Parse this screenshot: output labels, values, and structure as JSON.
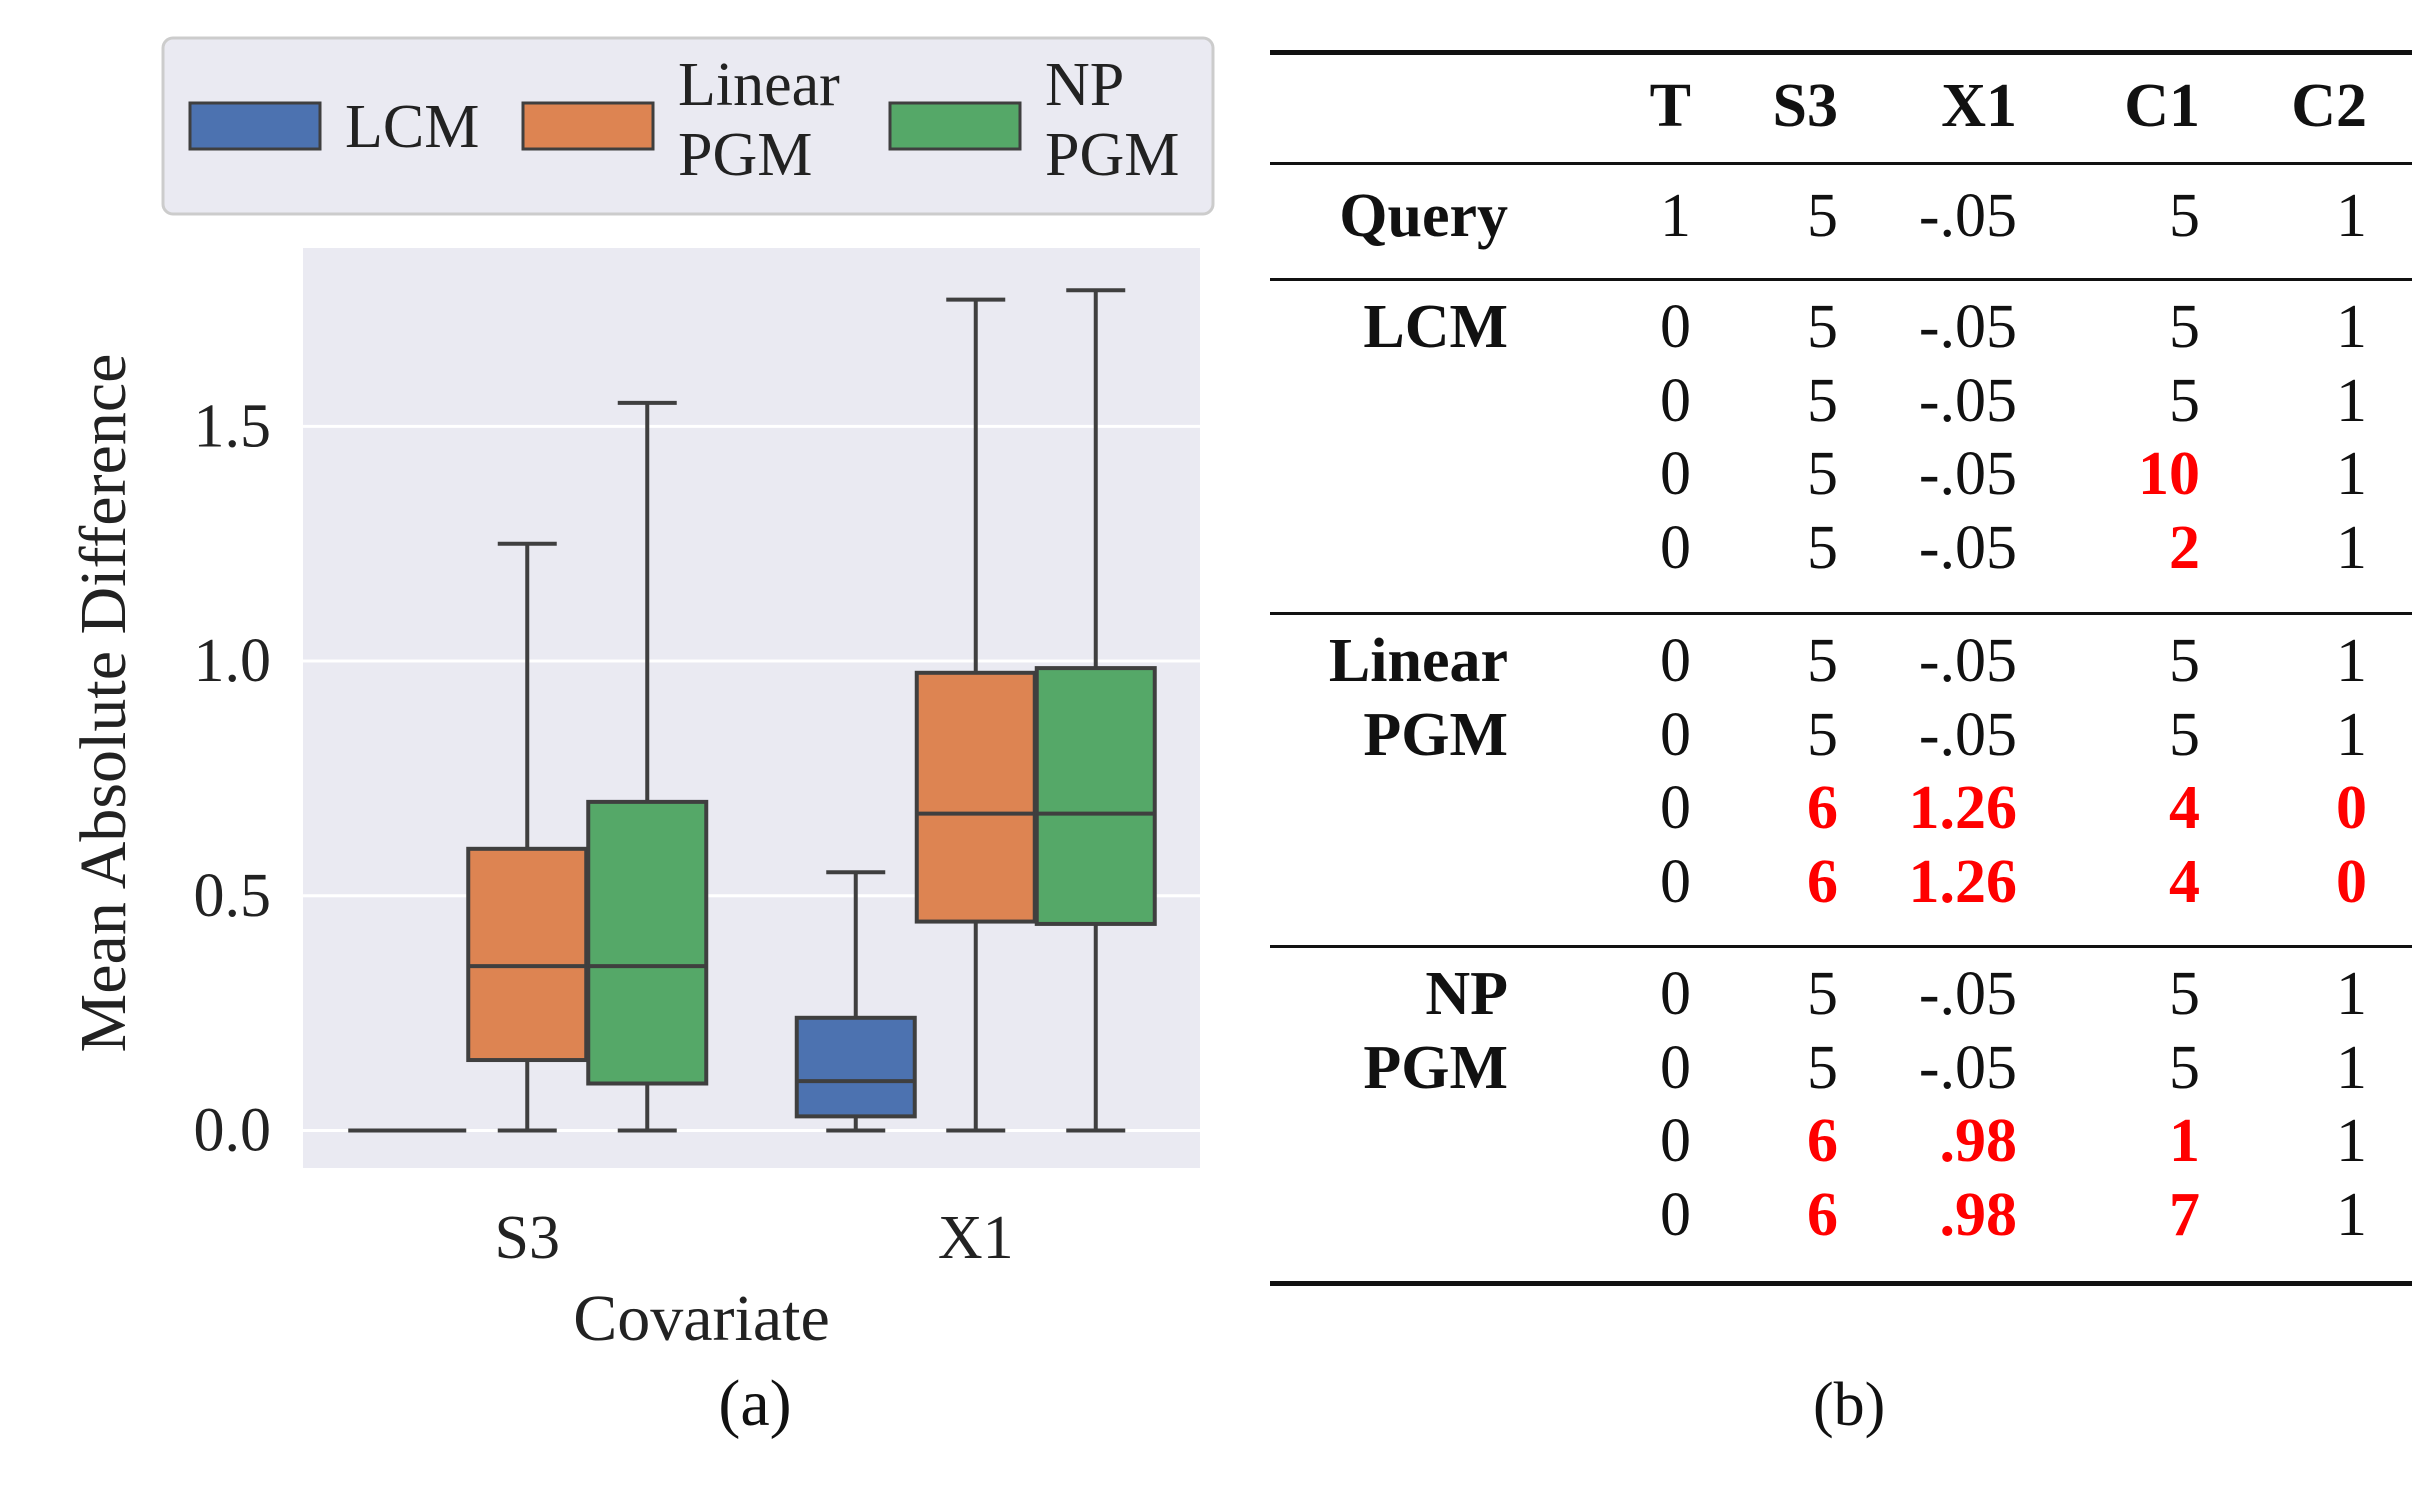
{
  "figure_a": {
    "caption": "(a)",
    "legend": [
      {
        "label_lines": [
          "LCM"
        ],
        "color": "#4c72b0"
      },
      {
        "label_lines": [
          "Linear",
          "PGM"
        ],
        "color": "#dd8452"
      },
      {
        "label_lines": [
          "NP",
          "PGM"
        ],
        "color": "#55a868"
      }
    ]
  },
  "chart_data": {
    "type": "boxplot",
    "xlabel": "Covariate",
    "ylabel": "Mean Absolute Difference",
    "categories": [
      "S3",
      "X1"
    ],
    "ylim": [
      -0.08,
      1.88
    ],
    "yticks": [
      0.0,
      0.5,
      1.0,
      1.5
    ],
    "ytick_labels": [
      "0.0",
      "0.5",
      "1.0",
      "1.5"
    ],
    "grid": true,
    "legend_position": "top",
    "series": [
      {
        "name": "LCM",
        "color": "#4c72b0",
        "boxes": [
          {
            "whislo": 0.0,
            "q1": 0.0,
            "med": 0.0,
            "q3": 0.0,
            "whishi": 0.0
          },
          {
            "whislo": 0.0,
            "q1": 0.03,
            "med": 0.105,
            "q3": 0.24,
            "whishi": 0.55
          }
        ]
      },
      {
        "name": "Linear PGM",
        "color": "#dd8452",
        "boxes": [
          {
            "whislo": 0.0,
            "q1": 0.15,
            "med": 0.35,
            "q3": 0.6,
            "whishi": 1.25
          },
          {
            "whislo": 0.0,
            "q1": 0.445,
            "med": 0.675,
            "q3": 0.975,
            "whishi": 1.77
          }
        ]
      },
      {
        "name": "NP PGM",
        "color": "#55a868",
        "boxes": [
          {
            "whislo": 0.0,
            "q1": 0.1,
            "med": 0.35,
            "q3": 0.7,
            "whishi": 1.55
          },
          {
            "whislo": 0.0,
            "q1": 0.44,
            "med": 0.675,
            "q3": 0.985,
            "whishi": 1.79
          }
        ]
      }
    ]
  },
  "table_b": {
    "caption": "(b)",
    "columns": [
      "T",
      "S3",
      "X1",
      "C1",
      "C2"
    ],
    "groups": [
      {
        "label_lines": [
          "Query"
        ],
        "rows": [
          [
            {
              "v": "1",
              "hl": false
            },
            {
              "v": "5",
              "hl": false
            },
            {
              "v": "-.05",
              "hl": false
            },
            {
              "v": "5",
              "hl": false
            },
            {
              "v": "1",
              "hl": false
            }
          ]
        ]
      },
      {
        "label_lines": [
          "LCM"
        ],
        "rows": [
          [
            {
              "v": "0",
              "hl": false
            },
            {
              "v": "5",
              "hl": false
            },
            {
              "v": "-.05",
              "hl": false
            },
            {
              "v": "5",
              "hl": false
            },
            {
              "v": "1",
              "hl": false
            }
          ],
          [
            {
              "v": "0",
              "hl": false
            },
            {
              "v": "5",
              "hl": false
            },
            {
              "v": "-.05",
              "hl": false
            },
            {
              "v": "5",
              "hl": false
            },
            {
              "v": "1",
              "hl": false
            }
          ],
          [
            {
              "v": "0",
              "hl": false
            },
            {
              "v": "5",
              "hl": false
            },
            {
              "v": "-.05",
              "hl": false
            },
            {
              "v": "10",
              "hl": true
            },
            {
              "v": "1",
              "hl": false
            }
          ],
          [
            {
              "v": "0",
              "hl": false
            },
            {
              "v": "5",
              "hl": false
            },
            {
              "v": "-.05",
              "hl": false
            },
            {
              "v": "2",
              "hl": true
            },
            {
              "v": "1",
              "hl": false
            }
          ]
        ]
      },
      {
        "label_lines": [
          "Linear",
          "PGM"
        ],
        "rows": [
          [
            {
              "v": "0",
              "hl": false
            },
            {
              "v": "5",
              "hl": false
            },
            {
              "v": "-.05",
              "hl": false
            },
            {
              "v": "5",
              "hl": false
            },
            {
              "v": "1",
              "hl": false
            }
          ],
          [
            {
              "v": "0",
              "hl": false
            },
            {
              "v": "5",
              "hl": false
            },
            {
              "v": "-.05",
              "hl": false
            },
            {
              "v": "5",
              "hl": false
            },
            {
              "v": "1",
              "hl": false
            }
          ],
          [
            {
              "v": "0",
              "hl": false
            },
            {
              "v": "6",
              "hl": true
            },
            {
              "v": "1.26",
              "hl": true
            },
            {
              "v": "4",
              "hl": true
            },
            {
              "v": "0",
              "hl": true
            }
          ],
          [
            {
              "v": "0",
              "hl": false
            },
            {
              "v": "6",
              "hl": true
            },
            {
              "v": "1.26",
              "hl": true
            },
            {
              "v": "4",
              "hl": true
            },
            {
              "v": "0",
              "hl": true
            }
          ]
        ]
      },
      {
        "label_lines": [
          "NP",
          "PGM"
        ],
        "rows": [
          [
            {
              "v": "0",
              "hl": false
            },
            {
              "v": "5",
              "hl": false
            },
            {
              "v": "-.05",
              "hl": false
            },
            {
              "v": "5",
              "hl": false
            },
            {
              "v": "1",
              "hl": false
            }
          ],
          [
            {
              "v": "0",
              "hl": false
            },
            {
              "v": "5",
              "hl": false
            },
            {
              "v": "-.05",
              "hl": false
            },
            {
              "v": "5",
              "hl": false
            },
            {
              "v": "1",
              "hl": false
            }
          ],
          [
            {
              "v": "0",
              "hl": false
            },
            {
              "v": "6",
              "hl": true
            },
            {
              "v": ".98",
              "hl": true
            },
            {
              "v": "1",
              "hl": true
            },
            {
              "v": "1",
              "hl": false
            }
          ],
          [
            {
              "v": "0",
              "hl": false
            },
            {
              "v": "6",
              "hl": true
            },
            {
              "v": ".98",
              "hl": true
            },
            {
              "v": "7",
              "hl": true
            },
            {
              "v": "1",
              "hl": false
            }
          ]
        ]
      }
    ]
  }
}
